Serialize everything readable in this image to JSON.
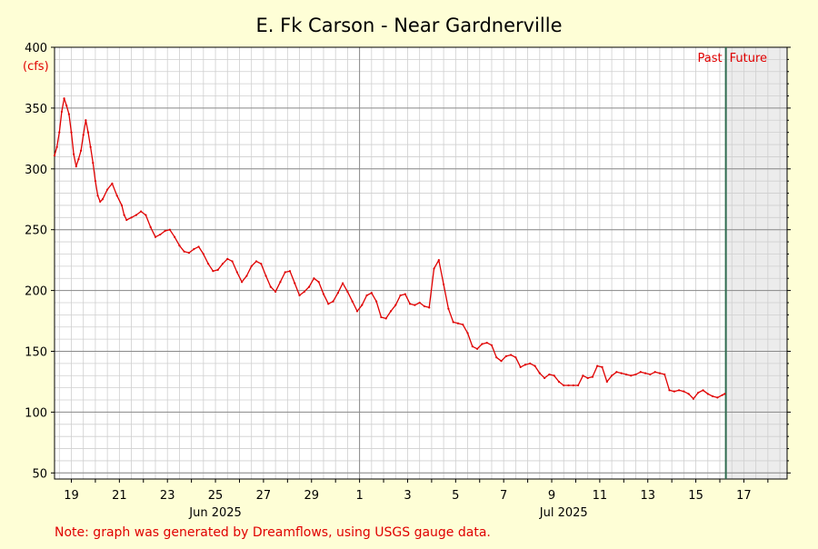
{
  "chart_data": {
    "type": "line",
    "title": "E. Fk Carson - Near Gardnerville",
    "unit_label": "(cfs)",
    "ylim": [
      45,
      400
    ],
    "y_ticks": [
      50,
      100,
      150,
      200,
      250,
      300,
      350,
      400
    ],
    "x_range_days": [
      18.3,
      48.8
    ],
    "x_tick_labels": [
      {
        "day": 19,
        "label": "19"
      },
      {
        "day": 21,
        "label": "21"
      },
      {
        "day": 23,
        "label": "23"
      },
      {
        "day": 25,
        "label": "25"
      },
      {
        "day": 27,
        "label": "27"
      },
      {
        "day": 29,
        "label": "29"
      },
      {
        "day": 31,
        "label": "1"
      },
      {
        "day": 33,
        "label": "3"
      },
      {
        "day": 35,
        "label": "5"
      },
      {
        "day": 37,
        "label": "7"
      },
      {
        "day": 39,
        "label": "9"
      },
      {
        "day": 41,
        "label": "11"
      },
      {
        "day": 43,
        "label": "13"
      },
      {
        "day": 45,
        "label": "15"
      },
      {
        "day": 47,
        "label": "17"
      }
    ],
    "month_labels": [
      {
        "day": 25,
        "label": "Jun 2025"
      },
      {
        "day": 39.5,
        "label": "Jul 2025"
      }
    ],
    "month_boundary_day": 31,
    "now_day": 46.25,
    "past_label": "Past",
    "future_label": "Future",
    "grid": true,
    "line_color": "#e00000",
    "now_line_color": "#2e6b4f",
    "series": [
      {
        "x": [
          18.3,
          18.4,
          18.5,
          18.6,
          18.7,
          18.8,
          18.9,
          19.0,
          19.1,
          19.2,
          19.3,
          19.4,
          19.5,
          19.6,
          19.7,
          19.8,
          19.9,
          20.0,
          20.1,
          20.2,
          20.3,
          20.5,
          20.7,
          20.9,
          21.1,
          21.2,
          21.3,
          21.5,
          21.7,
          21.9,
          22.1,
          22.3,
          22.5,
          22.7,
          22.9,
          23.1,
          23.3,
          23.5,
          23.7,
          23.9,
          24.1,
          24.3,
          24.5,
          24.7,
          24.9,
          25.1,
          25.3,
          25.5,
          25.7,
          25.9,
          26.1,
          26.3,
          26.5,
          26.7,
          26.9,
          27.1,
          27.3,
          27.5,
          27.7,
          27.9,
          28.1,
          28.3,
          28.5,
          28.7,
          28.9,
          29.1,
          29.3,
          29.5,
          29.7,
          29.9,
          30.1,
          30.3,
          30.5,
          30.7,
          30.9,
          31.1,
          31.3,
          31.5,
          31.7,
          31.9,
          32.1,
          32.3,
          32.5,
          32.7,
          32.9,
          33.1,
          33.3,
          33.5,
          33.7,
          33.9,
          34.1,
          34.3,
          34.5,
          34.7,
          34.9,
          35.1,
          35.3,
          35.5,
          35.7,
          35.9,
          36.1,
          36.3,
          36.5,
          36.7,
          36.9,
          37.1,
          37.3,
          37.5,
          37.7,
          37.9,
          38.1,
          38.3,
          38.5,
          38.7,
          38.9,
          39.1,
          39.3,
          39.5,
          39.7,
          39.9,
          40.1,
          40.3,
          40.5,
          40.7,
          40.9,
          41.1,
          41.3,
          41.5,
          41.7,
          41.9,
          42.1,
          42.3,
          42.5,
          42.7,
          42.9,
          43.1,
          43.3,
          43.5,
          43.7,
          43.9,
          44.1,
          44.3,
          44.5,
          44.7,
          44.9,
          45.1,
          45.3,
          45.5,
          45.7,
          45.9,
          46.1,
          46.2
        ],
        "y": [
          311,
          318,
          330,
          347,
          358,
          352,
          345,
          330,
          312,
          302,
          308,
          315,
          328,
          340,
          330,
          318,
          305,
          290,
          278,
          273,
          275,
          283,
          288,
          278,
          270,
          262,
          258,
          260,
          262,
          265,
          262,
          252,
          244,
          246,
          249,
          250,
          244,
          237,
          232,
          231,
          234,
          236,
          230,
          222,
          216,
          217,
          222,
          226,
          224,
          215,
          207,
          212,
          220,
          224,
          222,
          212,
          203,
          199,
          207,
          215,
          216,
          206,
          196,
          199,
          203,
          210,
          207,
          197,
          189,
          191,
          198,
          206,
          199,
          191,
          183,
          188,
          196,
          198,
          191,
          178,
          177,
          183,
          188,
          196,
          197,
          189,
          188,
          190,
          187,
          186,
          218,
          225,
          205,
          185,
          174,
          173,
          172,
          165,
          154,
          152,
          156,
          157,
          155,
          145,
          142,
          146,
          147,
          145,
          137,
          139,
          140,
          138,
          132,
          128,
          131,
          130,
          125,
          122,
          122,
          122,
          122,
          130,
          128,
          129,
          138,
          137,
          125,
          130,
          133,
          132,
          131,
          130,
          131,
          133,
          132,
          131,
          133,
          132,
          131,
          118,
          117,
          118,
          117,
          115,
          111,
          116,
          118,
          115,
          113,
          112,
          114,
          115
        ]
      }
    ]
  },
  "footer_note": "Note: graph was generated by Dreamflows, using USGS gauge data."
}
